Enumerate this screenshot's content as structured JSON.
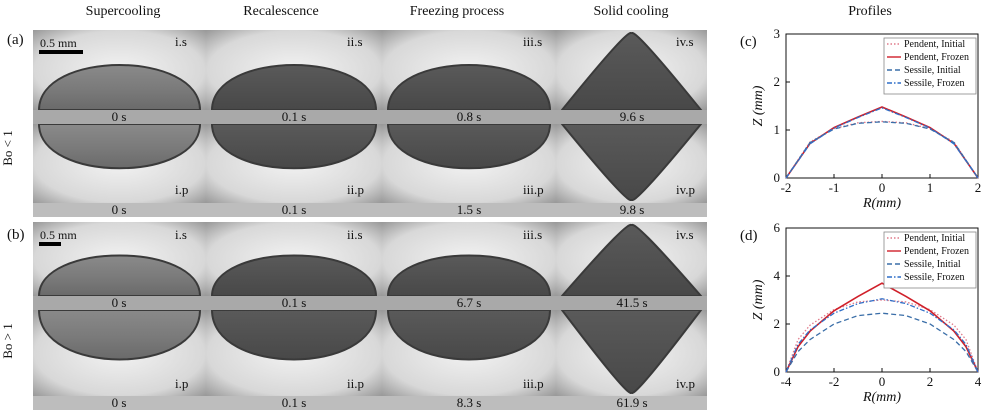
{
  "headers": [
    "Supercooling",
    "Recalescence",
    "Freezing process",
    "Solid cooling",
    "Profiles"
  ],
  "rows": [
    {
      "panel": "(a)",
      "bo": "Bo < 1",
      "scale": "0.5 mm",
      "sessile_labels": [
        "i.s",
        "ii.s",
        "iii.s",
        "iv.s"
      ],
      "pendent_labels": [
        "i.p",
        "ii.p",
        "iii.p",
        "iv.p"
      ],
      "sessile_times": [
        "0 s",
        "0.1 s",
        "0.8 s",
        "9.6 s"
      ],
      "pendent_times": [
        "0 s",
        "0.1 s",
        "1.5 s",
        "9.8 s"
      ]
    },
    {
      "panel": "(b)",
      "bo": "Bo > 1",
      "scale": "0.5 mm",
      "sessile_labels": [
        "i.s",
        "ii.s",
        "iii.s",
        "iv.s"
      ],
      "pendent_labels": [
        "i.p",
        "ii.p",
        "iii.p",
        "iv.p"
      ],
      "sessile_times": [
        "0 s",
        "0.1 s",
        "6.7 s",
        "41.5 s"
      ],
      "pendent_times": [
        "0 s",
        "0.1 s",
        "8.3 s",
        "61.9 s"
      ]
    }
  ],
  "colors": {
    "pendent_initial": "#e07a8a",
    "pendent_frozen": "#d0202a",
    "sessile_initial": "#3a6ea8",
    "sessile_frozen": "#2f6fc8"
  },
  "chart_data": [
    {
      "type": "line",
      "panel": "(c)",
      "xlabel": "R(mm)",
      "ylabel": "Z (mm)",
      "xlim": [
        -2,
        2
      ],
      "ylim": [
        0,
        3
      ],
      "xticks": [
        -2,
        -1,
        0,
        1,
        2
      ],
      "yticks": [
        0,
        1,
        2,
        3
      ],
      "legend_position": "top-right",
      "series": [
        {
          "name": "Pendent, Initial",
          "style": "dotted",
          "color": "#e07a8a",
          "x": [
            -2,
            -1.5,
            -1,
            -0.5,
            0,
            0.5,
            1,
            1.5,
            2
          ],
          "y": [
            0,
            0.75,
            1.03,
            1.15,
            1.18,
            1.15,
            1.03,
            0.75,
            0
          ]
        },
        {
          "name": "Pendent, Frozen",
          "style": "solid",
          "color": "#d0202a",
          "x": [
            -2,
            -1.5,
            -1,
            -0.5,
            0,
            0.5,
            1,
            1.5,
            2
          ],
          "y": [
            0,
            0.72,
            1.05,
            1.27,
            1.48,
            1.27,
            1.05,
            0.72,
            0
          ]
        },
        {
          "name": "Sessile, Initial",
          "style": "dashed",
          "color": "#3a6ea8",
          "x": [
            -2,
            -1.5,
            -1,
            -0.5,
            0,
            0.5,
            1,
            1.5,
            2
          ],
          "y": [
            0,
            0.74,
            1.02,
            1.14,
            1.17,
            1.14,
            1.02,
            0.74,
            0
          ]
        },
        {
          "name": "Sessile, Frozen",
          "style": "dashdot",
          "color": "#2f6fc8",
          "x": [
            -2,
            -1.5,
            -1,
            -0.5,
            0,
            0.5,
            1,
            1.5,
            2
          ],
          "y": [
            0,
            0.71,
            1.04,
            1.26,
            1.46,
            1.26,
            1.04,
            0.71,
            0
          ]
        }
      ]
    },
    {
      "type": "line",
      "panel": "(d)",
      "xlabel": "R(mm)",
      "ylabel": "Z (mm)",
      "xlim": [
        -4,
        4
      ],
      "ylim": [
        0,
        6
      ],
      "xticks": [
        -4,
        -2,
        0,
        2,
        4
      ],
      "yticks": [
        0,
        2,
        4,
        6
      ],
      "legend_position": "top-right",
      "series": [
        {
          "name": "Pendent, Initial",
          "style": "dotted",
          "color": "#e07a8a",
          "x": [
            -4,
            -3.5,
            -3,
            -2,
            -1,
            0,
            1,
            2,
            3,
            3.5,
            4
          ],
          "y": [
            0,
            1.35,
            1.95,
            2.6,
            2.92,
            3.0,
            2.92,
            2.6,
            1.95,
            1.35,
            0
          ]
        },
        {
          "name": "Pendent, Frozen",
          "style": "solid",
          "color": "#d0202a",
          "x": [
            -4,
            -3.5,
            -3,
            -2,
            -1,
            0,
            1,
            2,
            3,
            3.5,
            4
          ],
          "y": [
            0,
            1.05,
            1.7,
            2.55,
            3.15,
            3.7,
            3.15,
            2.55,
            1.7,
            1.05,
            0
          ]
        },
        {
          "name": "Sessile, Initial",
          "style": "dashed",
          "color": "#3a6ea8",
          "x": [
            -4,
            -3.5,
            -3,
            -2,
            -1,
            0,
            1,
            2,
            3,
            3.5,
            4
          ],
          "y": [
            0,
            0.85,
            1.35,
            2.0,
            2.35,
            2.45,
            2.35,
            2.0,
            1.35,
            0.85,
            0
          ]
        },
        {
          "name": "Sessile, Frozen",
          "style": "dashdot",
          "color": "#2f6fc8",
          "x": [
            -4,
            -3.5,
            -3,
            -2,
            -1,
            0,
            1,
            2,
            3,
            3.5,
            4
          ],
          "y": [
            0,
            1.15,
            1.75,
            2.45,
            2.85,
            3.05,
            2.85,
            2.45,
            1.75,
            1.15,
            0
          ]
        }
      ]
    }
  ]
}
